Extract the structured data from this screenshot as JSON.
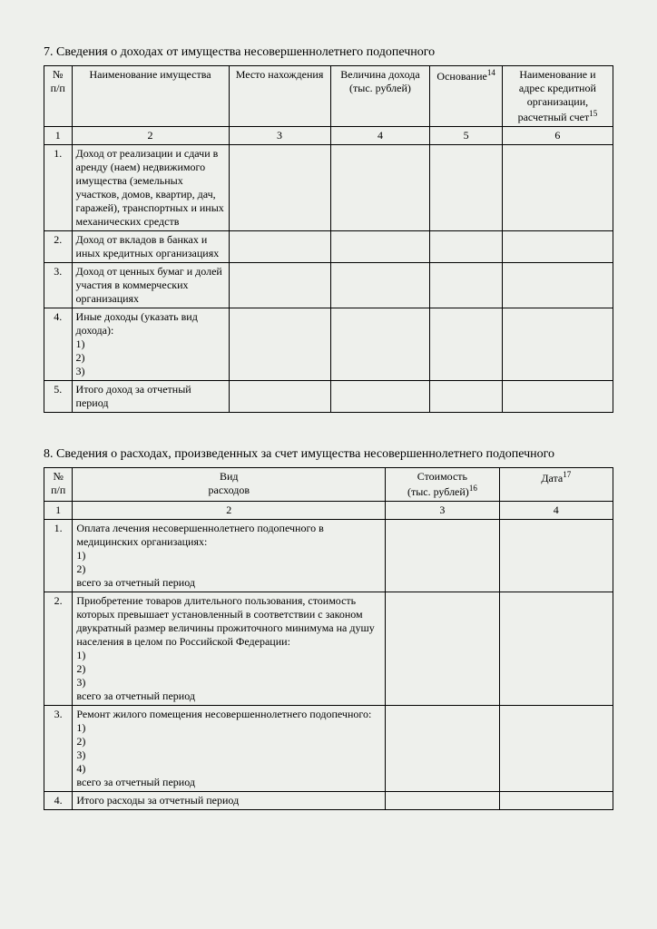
{
  "section7": {
    "title": "7. Сведения о доходах от имущества несовершеннолетнего подопечного",
    "headers": {
      "num": "№\nп/п",
      "name": "Наименование имущества",
      "place": "Место нахождения",
      "amount": "Величина дохода\n(тыс. рублей)",
      "basis": "Основание",
      "basis_sup": "14",
      "org": "Наименование и адрес кредитной организации, расчетный счет",
      "org_sup": "15"
    },
    "colnums": [
      "1",
      "2",
      "3",
      "4",
      "5",
      "6"
    ],
    "rows": [
      {
        "n": "1.",
        "text": "Доход от реализации и сдачи в аренду (наем) недвижимого имущества (земельных участков, домов, квартир, дач, гаражей), транспортных и иных механических средств"
      },
      {
        "n": "2.",
        "text": "Доход от вкладов в банках и иных кредитных организациях"
      },
      {
        "n": "3.",
        "text": "Доход от ценных бумаг и долей участия в коммерческих организациях"
      },
      {
        "n": "4.",
        "text": "Иные доходы (указать вид дохода):\n1)\n2)\n3)"
      },
      {
        "n": "5.",
        "text": "Итого доход за отчетный период"
      }
    ]
  },
  "section8": {
    "title": "8. Сведения о расходах, произведенных за счет имущества несовершеннолетнего подопечного",
    "headers": {
      "num": "№\nп/п",
      "kind": "Вид\nрасходов",
      "cost": "Стоимость\n(тыс. рублей)",
      "cost_sup": "16",
      "date": "Дата",
      "date_sup": "17"
    },
    "colnums": [
      "1",
      "2",
      "3",
      "4"
    ],
    "rows": [
      {
        "n": "1.",
        "text": "Оплата лечения несовершеннолетнего подопечного в медицинских организациях:\n1)\n2)\n     всего за отчетный период"
      },
      {
        "n": "2.",
        "text": "Приобретение товаров длительного пользования, стоимость которых превышает установленный в соответствии с законом двукратный размер величины прожиточного минимума на душу населения в целом по Российской Федерации:\n1)\n2)\n3)\n     всего за отчетный период"
      },
      {
        "n": "3.",
        "text": "Ремонт жилого помещения несовершеннолетнего подопечного:\n1)\n2)\n3)\n4)\n     всего за отчетный период"
      },
      {
        "n": "4.",
        "text": "Итого расходы за отчетный период"
      }
    ]
  }
}
